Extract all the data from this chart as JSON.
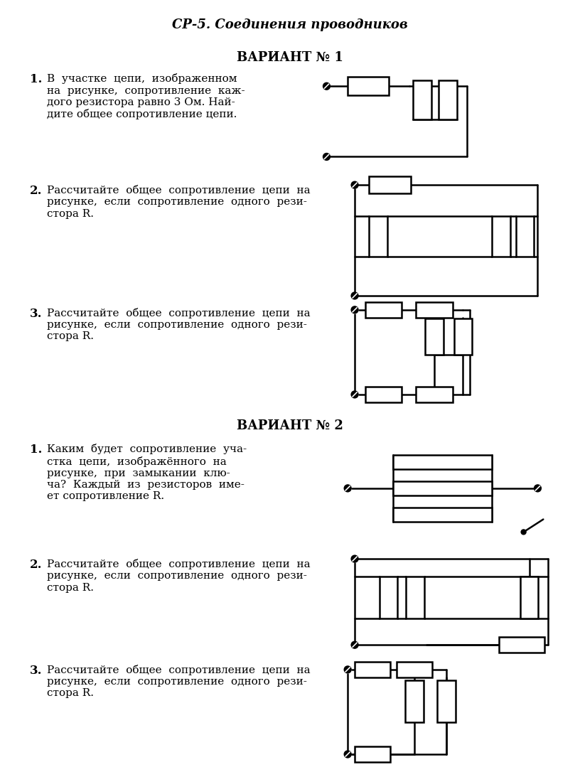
{
  "title": "СР-5. Соединения проводников",
  "variant1": "ВАРИАНТ № 1",
  "variant2": "ВАРИАНТ № 2",
  "bg_color": "#ffffff",
  "text_color": "#000000"
}
